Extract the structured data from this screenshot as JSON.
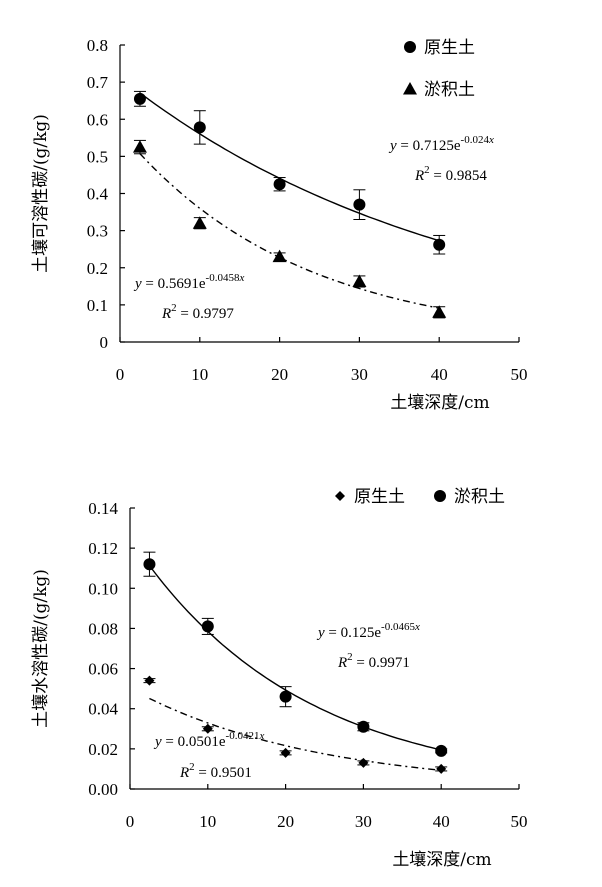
{
  "chart_data": [
    {
      "type": "scatter",
      "title": "",
      "xlabel": "土壤深度/cm",
      "ylabel": "土壤可溶性碳/(g/kg)",
      "xlim": [
        0,
        50
      ],
      "ylim": [
        0,
        0.8
      ],
      "xticks": [
        "0",
        "10",
        "20",
        "30",
        "40",
        "50"
      ],
      "yticks": [
        "0",
        "0.1",
        "0.2",
        "0.3",
        "0.4",
        "0.5",
        "0.6",
        "0.7",
        "0.8"
      ],
      "legend_position": "top-right",
      "grid": false,
      "series": [
        {
          "name": "原生土",
          "marker": "circle",
          "line": "solid",
          "x": [
            2.5,
            10,
            20,
            30,
            40
          ],
          "y": [
            0.655,
            0.578,
            0.425,
            0.37,
            0.262
          ],
          "err": [
            0.02,
            0.045,
            0.018,
            0.04,
            0.025
          ],
          "fit": {
            "a": 0.7125,
            "b": -0.024
          },
          "eq_coef": "0.7125",
          "eq_exp": "-0.024",
          "r2_value": "0.9854"
        },
        {
          "name": "淤积土",
          "marker": "triangle",
          "line": "dashed",
          "x": [
            2.5,
            10,
            20,
            30,
            40
          ],
          "y": [
            0.525,
            0.32,
            0.23,
            0.163,
            0.08
          ],
          "err": [
            0.018,
            0.015,
            0.01,
            0.015,
            0.015
          ],
          "fit": {
            "a": 0.5691,
            "b": -0.0458
          },
          "eq_coef": "0.5691",
          "eq_exp": "-0.0458",
          "r2_value": "0.9797"
        }
      ]
    },
    {
      "type": "scatter",
      "title": "",
      "xlabel": "土壤深度/cm",
      "ylabel": "土壤水溶性碳/(g/kg)",
      "xlim": [
        0,
        50
      ],
      "ylim": [
        0,
        0.14
      ],
      "xticks": [
        "0",
        "10",
        "20",
        "30",
        "40",
        "50"
      ],
      "yticks": [
        "0.00",
        "0.02",
        "0.04",
        "0.06",
        "0.08",
        "0.10",
        "0.12",
        "0.14"
      ],
      "legend_position": "top-right",
      "grid": false,
      "series": [
        {
          "name": "原生土",
          "marker": "diamond",
          "line": "dashed",
          "x": [
            2.5,
            10,
            20,
            30,
            40
          ],
          "y": [
            0.054,
            0.03,
            0.018,
            0.013,
            0.01
          ],
          "err": [
            0.001,
            0.001,
            0.001,
            0.001,
            0.001
          ],
          "fit": {
            "a": 0.0501,
            "b": -0.0421
          },
          "eq_coef": "0.0501",
          "eq_exp": "-0.0421",
          "r2_value": "0.9501"
        },
        {
          "name": "淤积土",
          "marker": "circle",
          "line": "solid",
          "x": [
            2.5,
            10,
            20,
            30,
            40
          ],
          "y": [
            0.112,
            0.081,
            0.046,
            0.031,
            0.019
          ],
          "err": [
            0.006,
            0.004,
            0.005,
            0.002,
            0.001
          ],
          "fit": {
            "a": 0.125,
            "b": -0.0465
          },
          "eq_coef": "0.125",
          "eq_exp": "-0.0465",
          "r2_value": "0.9971"
        }
      ]
    }
  ]
}
